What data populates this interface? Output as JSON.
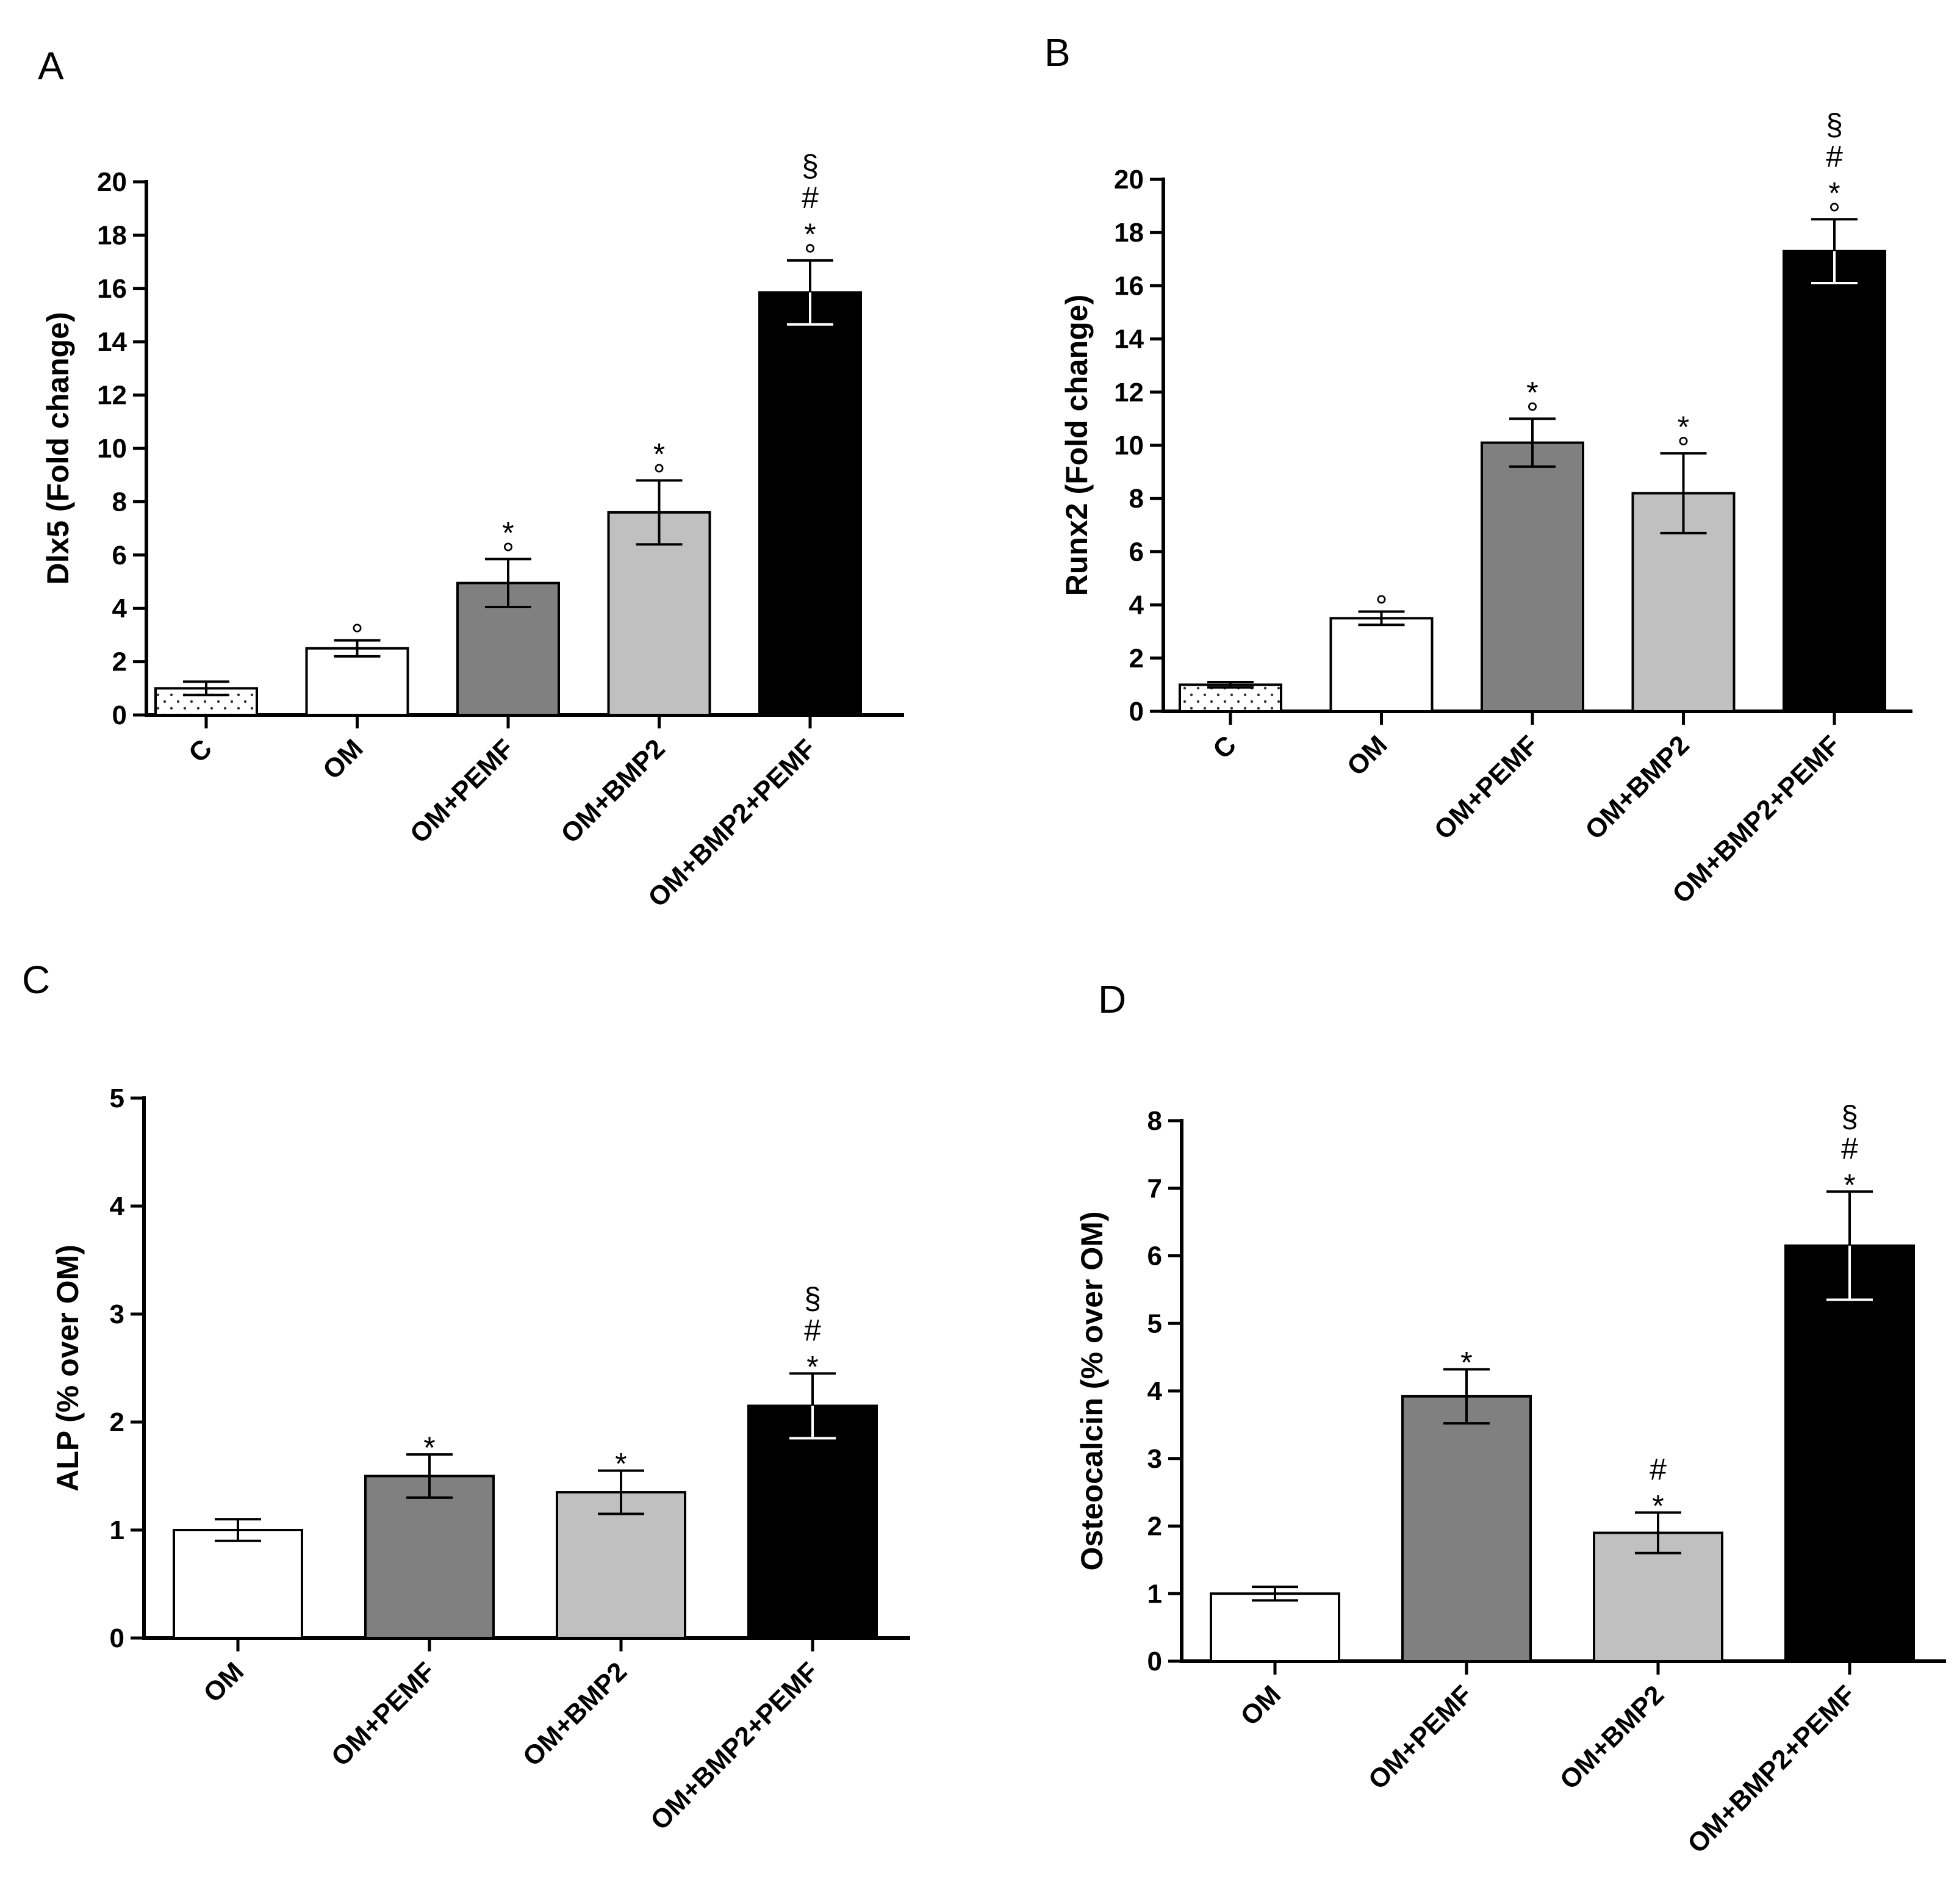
{
  "figure": {
    "background": "#ffffff"
  },
  "chart_data": [
    {
      "panel": "A",
      "type": "bar",
      "ylabel": "Dlx5 (Fold change)",
      "xlabel": "",
      "ylim": [
        0,
        20
      ],
      "yticks": [
        0,
        2,
        4,
        6,
        8,
        10,
        12,
        14,
        16,
        18,
        20
      ],
      "categories": [
        "C",
        "OM",
        "OM+PEMF",
        "OM+BMP2",
        "OM+BMP2+PEMF"
      ],
      "values": [
        1.0,
        2.5,
        4.95,
        7.6,
        15.85
      ],
      "errors": [
        0.25,
        0.3,
        0.9,
        1.2,
        1.2
      ],
      "fills": [
        "dots",
        "#ffffff",
        "#808080",
        "#c0c0c0",
        "#000000"
      ],
      "annotations": [
        [],
        [
          "°"
        ],
        [
          "°",
          "*"
        ],
        [
          "°",
          "*"
        ],
        [
          "°",
          "*",
          "#",
          "§"
        ]
      ],
      "grid": false
    },
    {
      "panel": "B",
      "type": "bar",
      "ylabel": "Runx2 (Fold change)",
      "xlabel": "",
      "ylim": [
        0,
        20
      ],
      "yticks": [
        0,
        2,
        4,
        6,
        8,
        10,
        12,
        14,
        16,
        18,
        20
      ],
      "categories": [
        "C",
        "OM",
        "OM+PEMF",
        "OM+BMP2",
        "OM+BMP2+PEMF"
      ],
      "values": [
        1.0,
        3.5,
        10.1,
        8.2,
        17.3
      ],
      "errors": [
        0.1,
        0.25,
        0.9,
        1.5,
        1.2
      ],
      "fills": [
        "dots",
        "#ffffff",
        "#808080",
        "#c0c0c0",
        "#000000"
      ],
      "annotations": [
        [],
        [
          "°"
        ],
        [
          "°",
          "*"
        ],
        [
          "°",
          "*"
        ],
        [
          "°",
          "*",
          "#",
          "§"
        ]
      ],
      "grid": false
    },
    {
      "panel": "C",
      "type": "bar",
      "ylabel": "ALP (% over OM)",
      "xlabel": "",
      "ylim": [
        0,
        5
      ],
      "yticks": [
        0,
        1,
        2,
        3,
        4,
        5
      ],
      "categories": [
        "OM",
        "OM+PEMF",
        "OM+BMP2",
        "OM+BMP2+PEMF"
      ],
      "values": [
        1.0,
        1.5,
        1.35,
        2.15
      ],
      "errors": [
        0.1,
        0.2,
        0.2,
        0.3
      ],
      "fills": [
        "#ffffff",
        "#808080",
        "#c0c0c0",
        "#000000"
      ],
      "annotations": [
        [],
        [
          "*"
        ],
        [
          "*"
        ],
        [
          "*",
          "#",
          "§"
        ]
      ],
      "grid": false
    },
    {
      "panel": "D",
      "type": "bar",
      "ylabel": "Osteocalcin (% over OM)",
      "xlabel": "",
      "ylim": [
        0,
        8
      ],
      "yticks": [
        0,
        1,
        2,
        3,
        4,
        5,
        6,
        7,
        8
      ],
      "categories": [
        "OM",
        "OM+PEMF",
        "OM+BMP2",
        "OM+BMP2+PEMF"
      ],
      "values": [
        1.0,
        3.92,
        1.9,
        6.15
      ],
      "errors": [
        0.1,
        0.4,
        0.3,
        0.8
      ],
      "fills": [
        "#ffffff",
        "#808080",
        "#c0c0c0",
        "#000000"
      ],
      "annotations": [
        [],
        [
          "*"
        ],
        [
          "*",
          "#"
        ],
        [
          "*",
          "#",
          "§"
        ]
      ],
      "grid": false
    }
  ]
}
